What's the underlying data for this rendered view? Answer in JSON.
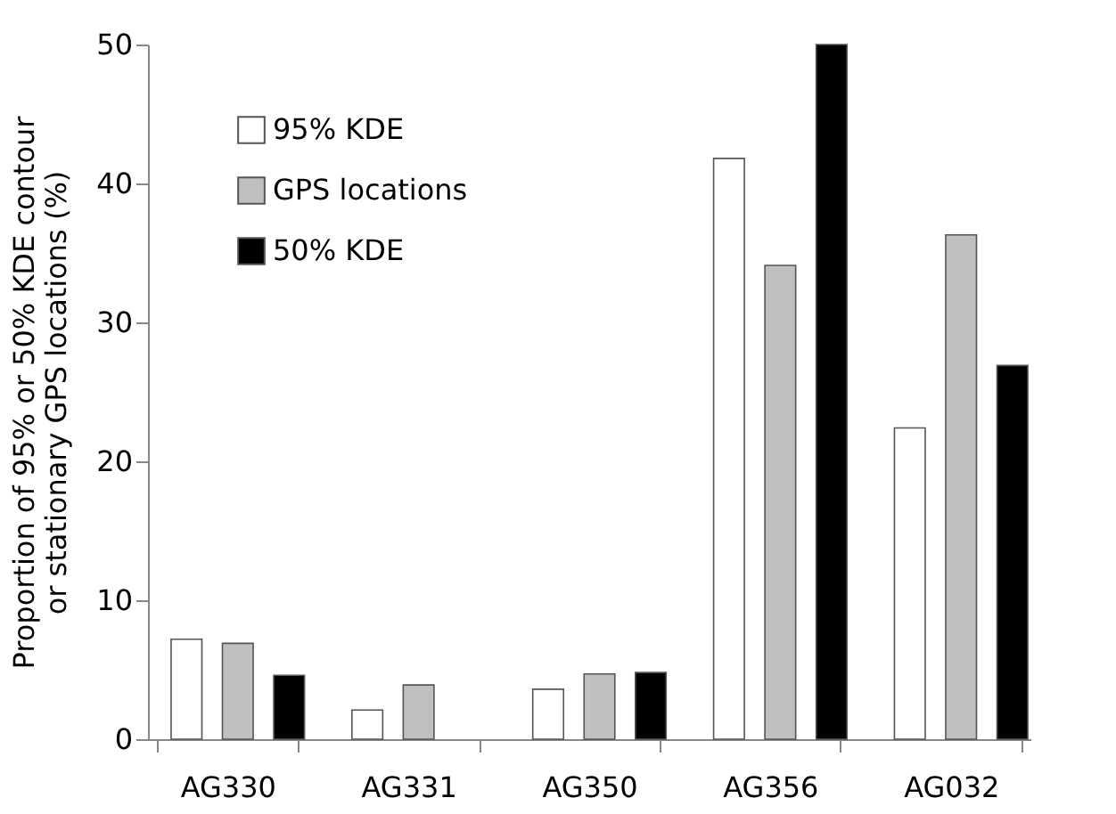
{
  "chart_data": {
    "type": "bar",
    "ylabel": "Proportion of 95% or 50% KDE contour\nor stationary GPS locations (%)",
    "categories": [
      "AG330",
      "AG331",
      "AG350",
      "AG356",
      "AG032"
    ],
    "series": [
      {
        "name": "95% KDE",
        "color": "#ffffff",
        "values": [
          7.2,
          2.1,
          3.6,
          41.8,
          22.4
        ]
      },
      {
        "name": "GPS locations",
        "color": "#c0c0c0",
        "values": [
          6.9,
          3.9,
          4.7,
          34.1,
          36.3
        ]
      },
      {
        "name": "50% KDE",
        "color": "#000000",
        "values": [
          4.6,
          null,
          4.8,
          50,
          26.9
        ]
      }
    ],
    "ylim": [
      0,
      50
    ],
    "yticks": [
      0,
      10,
      20,
      30,
      40,
      50
    ],
    "grid": false,
    "legend": "top left"
  }
}
